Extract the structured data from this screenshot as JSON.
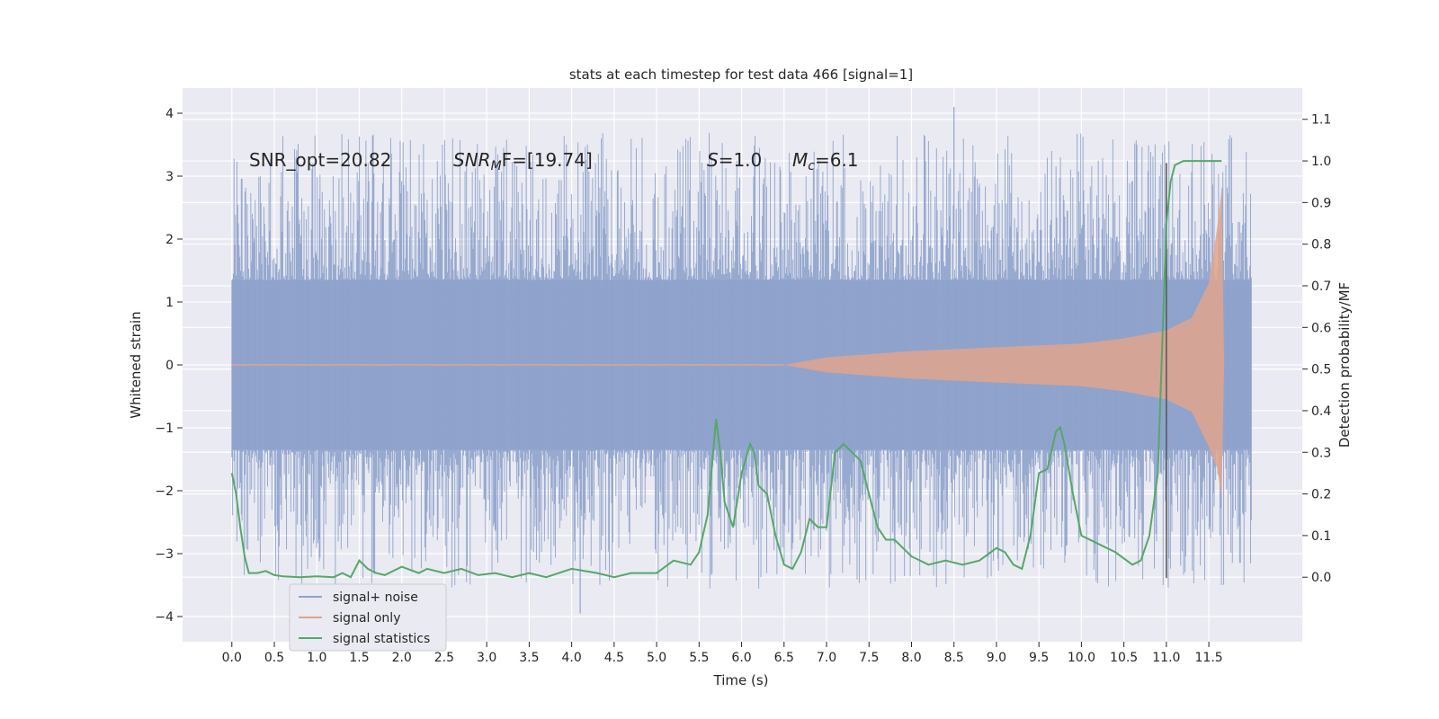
{
  "chart_data": {
    "type": "line",
    "title": "stats at each timestep for test data 466 [signal=1]",
    "xlabel": "Time (s)",
    "ylabel": "Whitened strain",
    "y2label": "Detection probability/MF",
    "xlim": [
      -0.58,
      12.6
    ],
    "ylim": [
      -4.4,
      4.4
    ],
    "y2lim": [
      -0.155,
      1.175
    ],
    "x_ticks": [
      "0.0",
      "0.5",
      "1.0",
      "1.5",
      "2.0",
      "2.5",
      "3.0",
      "3.5",
      "4.0",
      "4.5",
      "5.0",
      "5.5",
      "6.0",
      "6.5",
      "7.0",
      "7.5",
      "8.0",
      "8.5",
      "9.0",
      "9.5",
      "10.0",
      "10.5",
      "11.0",
      "11.5"
    ],
    "y_ticks": [
      "4",
      "3",
      "2",
      "1",
      "0",
      "−1",
      "−2",
      "−3",
      "−4"
    ],
    "y2_ticks": [
      "1.1",
      "1.0",
      "0.9",
      "0.8",
      "0.7",
      "0.6",
      "0.5",
      "0.4",
      "0.3",
      "0.2",
      "0.1",
      "0.0"
    ],
    "grid": true,
    "legend_position": "bottom-left",
    "legend": [
      "signal+ noise",
      "signal only",
      "signal statistics"
    ],
    "annotations": {
      "snr_opt": "SNR_opt=20.82",
      "snr_mf_main": "SNR",
      "snr_mf_sub": "M",
      "snr_mf_rest": "F=[19.74]",
      "s_main": "S",
      "s_rest": "=1.0",
      "mc_main": "M",
      "mc_sub": "c",
      "mc_rest": "=6.1"
    },
    "series": [
      {
        "name": "signal+ noise",
        "color": "#8fa3cc",
        "axis": "left",
        "x_range": [
          0.0,
          12.0
        ],
        "envelope_upper": 1.35,
        "envelope_lower": -1.35,
        "max_value": 4.1,
        "min_value": -3.95
      },
      {
        "name": "signal only",
        "color": "#e0a58c",
        "axis": "left",
        "x": [
          6.5,
          7.0,
          8.0,
          9.0,
          10.0,
          10.5,
          11.0,
          11.3,
          11.5,
          11.6,
          11.65,
          11.68
        ],
        "amplitude": [
          0.0,
          0.12,
          0.22,
          0.28,
          0.34,
          0.42,
          0.55,
          0.75,
          1.3,
          2.2,
          2.8,
          0.0
        ]
      },
      {
        "name": "signal statistics",
        "color": "#55a868",
        "axis": "right",
        "x": [
          0.0,
          0.05,
          0.1,
          0.15,
          0.2,
          0.3,
          0.4,
          0.5,
          0.6,
          0.8,
          1.0,
          1.2,
          1.3,
          1.4,
          1.5,
          1.6,
          1.7,
          1.8,
          2.0,
          2.2,
          2.3,
          2.5,
          2.7,
          2.9,
          3.1,
          3.3,
          3.5,
          3.7,
          4.0,
          4.3,
          4.5,
          4.7,
          5.0,
          5.2,
          5.4,
          5.5,
          5.6,
          5.7,
          5.75,
          5.8,
          5.85,
          5.9,
          6.0,
          6.1,
          6.15,
          6.2,
          6.3,
          6.4,
          6.5,
          6.6,
          6.7,
          6.8,
          6.9,
          7.0,
          7.1,
          7.2,
          7.3,
          7.4,
          7.5,
          7.6,
          7.7,
          7.8,
          8.0,
          8.2,
          8.4,
          8.6,
          8.8,
          9.0,
          9.1,
          9.2,
          9.3,
          9.4,
          9.5,
          9.6,
          9.7,
          9.75,
          9.8,
          9.9,
          10.0,
          10.2,
          10.4,
          10.6,
          10.7,
          10.8,
          10.9,
          11.0,
          11.05,
          11.1,
          11.2,
          11.3,
          11.6,
          11.65
        ],
        "values": [
          0.25,
          0.2,
          0.12,
          0.05,
          0.01,
          0.01,
          0.015,
          0.005,
          0.002,
          0.0,
          0.002,
          0.0,
          0.01,
          0.0,
          0.04,
          0.02,
          0.01,
          0.005,
          0.025,
          0.01,
          0.02,
          0.01,
          0.02,
          0.005,
          0.01,
          0.0,
          0.01,
          0.0,
          0.02,
          0.01,
          0.0,
          0.01,
          0.01,
          0.04,
          0.03,
          0.06,
          0.15,
          0.38,
          0.3,
          0.18,
          0.15,
          0.12,
          0.25,
          0.32,
          0.3,
          0.22,
          0.2,
          0.1,
          0.03,
          0.02,
          0.06,
          0.14,
          0.12,
          0.12,
          0.3,
          0.32,
          0.3,
          0.28,
          0.2,
          0.12,
          0.09,
          0.09,
          0.05,
          0.03,
          0.04,
          0.03,
          0.04,
          0.07,
          0.06,
          0.03,
          0.02,
          0.1,
          0.25,
          0.26,
          0.35,
          0.36,
          0.32,
          0.2,
          0.1,
          0.08,
          0.06,
          0.03,
          0.04,
          0.1,
          0.25,
          0.85,
          0.95,
          0.99,
          1.0,
          1.0,
          1.0,
          1.0
        ]
      }
    ],
    "vline": {
      "x": 11.0,
      "y2_range": [
        -0.002,
        0.995
      ],
      "color": "#555555"
    }
  }
}
